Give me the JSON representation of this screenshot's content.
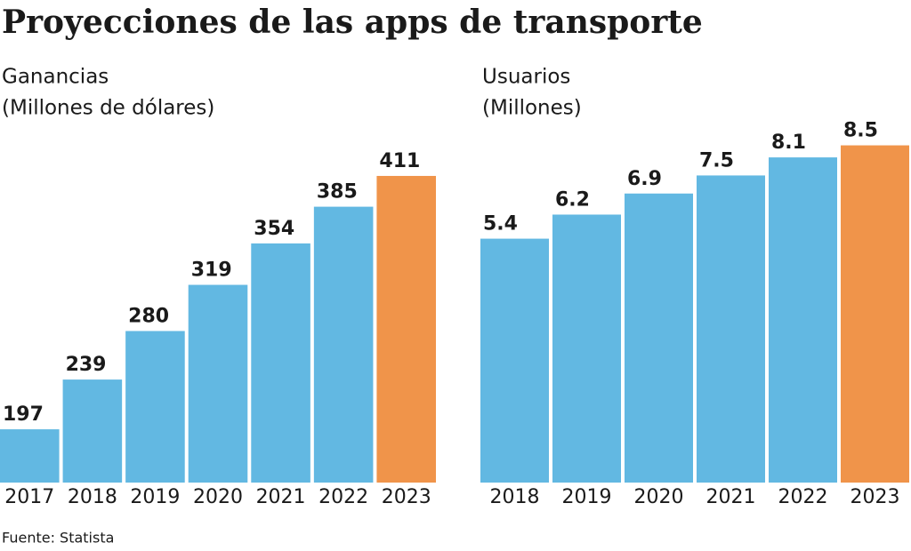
{
  "title": "Proyecciones de las apps de transporte",
  "source": "Fuente: Statista",
  "chart_data": [
    {
      "type": "bar",
      "title": "Ganancias",
      "subtitle": "(Millones de dólares)",
      "categories": [
        "2017",
        "2018",
        "2019",
        "2020",
        "2021",
        "2022",
        "2023"
      ],
      "values": [
        197,
        239,
        280,
        319,
        354,
        385,
        411
      ],
      "colors": [
        "#62b8e2",
        "#62b8e2",
        "#62b8e2",
        "#62b8e2",
        "#62b8e2",
        "#62b8e2",
        "#f0944a"
      ],
      "ylim": [
        152,
        447
      ]
    },
    {
      "type": "bar",
      "title": "Usuarios",
      "subtitle": "(Millones)",
      "categories": [
        "2018",
        "2019",
        "2020",
        "2021",
        "2022",
        "2023"
      ],
      "values": [
        5.4,
        6.2,
        6.9,
        7.5,
        8.1,
        8.5
      ],
      "colors": [
        "#62b8e2",
        "#62b8e2",
        "#62b8e2",
        "#62b8e2",
        "#62b8e2",
        "#f0944a"
      ],
      "ylim": [
        -2.7,
        8.9
      ]
    }
  ]
}
